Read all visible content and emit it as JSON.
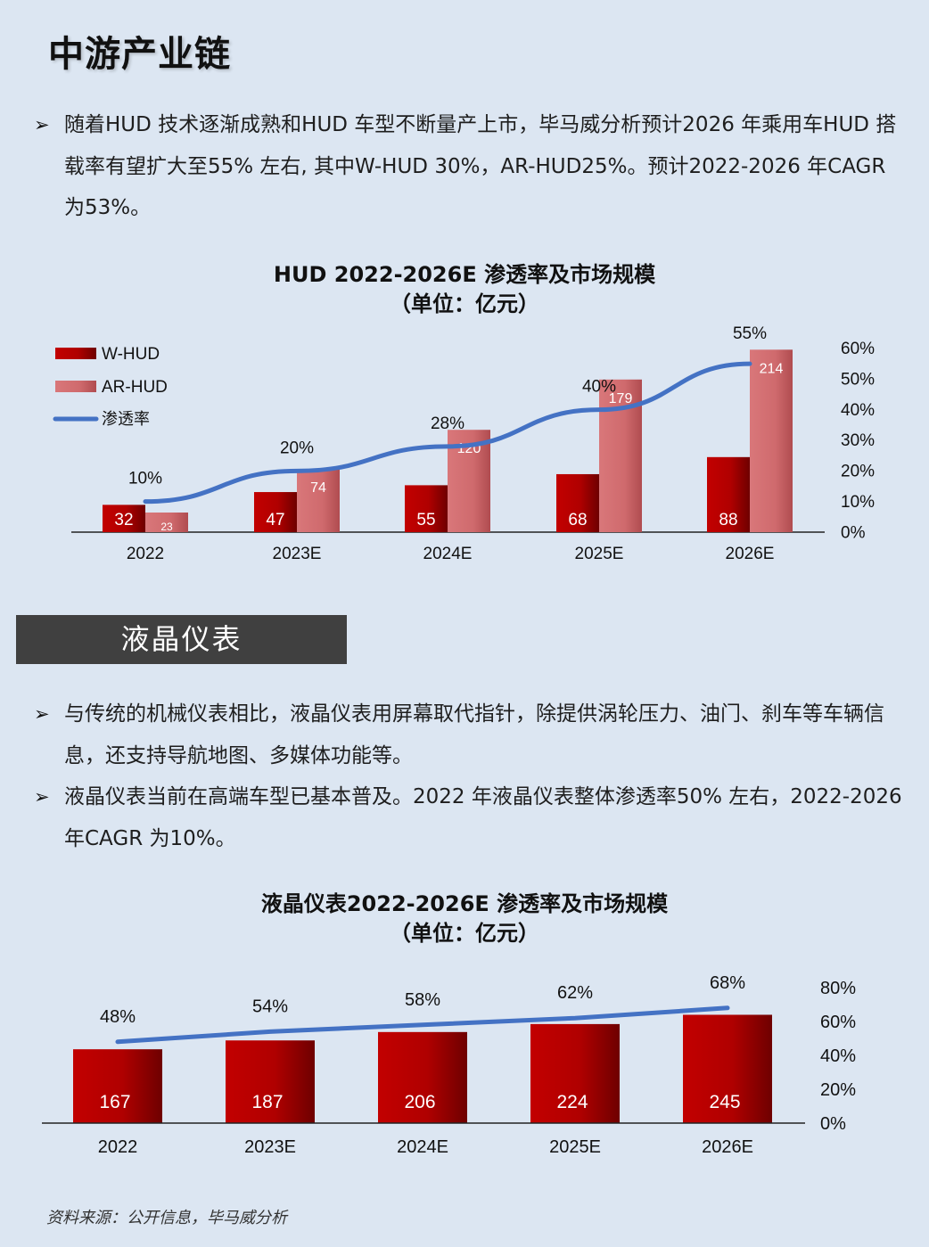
{
  "page_title": "中游产业链",
  "hud_bullets": [
    "随着HUD 技术逐渐成熟和HUD 车型不断量产上市，毕马威分析预计2026 年乘用车HUD 搭载率有望扩大至55% 左右, 其中W-HUD 30%，AR-HUD25%。预计2022-2026 年CAGR 为53%。"
  ],
  "section_header": "液晶仪表",
  "lcd_bullets": [
    "与传统的机械仪表相比，液晶仪表用屏幕取代指针，除提供涡轮压力、油门、刹车等车辆信息，还支持导航地图、多媒体功能等。",
    "液晶仪表当前在高端车型已基本普及。2022 年液晶仪表整体渗透率50% 左右，2022-2026 年CAGR 为10%。"
  ],
  "bullet_marker": "➢",
  "colors": {
    "dark_red": "#b00000",
    "light_red": "#d06a6e",
    "line_blue": "#4472c4",
    "header_bg": "#404040"
  },
  "chart_data": [
    {
      "type": "bar",
      "title": "HUD 2022-2026E 渗透率及市场规模",
      "subtitle": "（单位：亿元）",
      "categories": [
        "2022",
        "2023E",
        "2024E",
        "2025E",
        "2026E"
      ],
      "series": [
        {
          "name": "W-HUD",
          "type": "bar",
          "axis": "left",
          "values": [
            32,
            47,
            55,
            68,
            88
          ]
        },
        {
          "name": "AR-HUD",
          "type": "bar",
          "axis": "left",
          "values": [
            23,
            74,
            120,
            179,
            214
          ]
        },
        {
          "name": "渗透率",
          "type": "line",
          "axis": "right",
          "values": [
            10,
            20,
            28,
            40,
            55
          ],
          "labels": [
            "10%",
            "20%",
            "28%",
            "40%",
            "55%"
          ]
        }
      ],
      "y_max": 230,
      "y2_ticks": [
        "60%",
        "50%",
        "40%",
        "30%",
        "20%",
        "10%",
        "0%"
      ],
      "y2_max": 60,
      "legend": "top-left"
    },
    {
      "type": "bar",
      "title": "液晶仪表2022-2026E 渗透率及市场规模",
      "subtitle": "（单位：亿元）",
      "categories": [
        "2022",
        "2023E",
        "2024E",
        "2025E",
        "2026E"
      ],
      "series": [
        {
          "type": "bar",
          "axis": "left",
          "values": [
            167,
            187,
            206,
            224,
            245
          ]
        },
        {
          "type": "line",
          "axis": "right",
          "values": [
            48,
            54,
            58,
            62,
            68
          ],
          "labels": [
            "48%",
            "54%",
            "58%",
            "62%",
            "68%"
          ]
        }
      ],
      "y_max": 250,
      "y2_ticks": [
        "80%",
        "60%",
        "40%",
        "20%",
        "0%"
      ],
      "y2_max": 80
    }
  ],
  "source": "资料来源：公开信息，毕马威分析"
}
